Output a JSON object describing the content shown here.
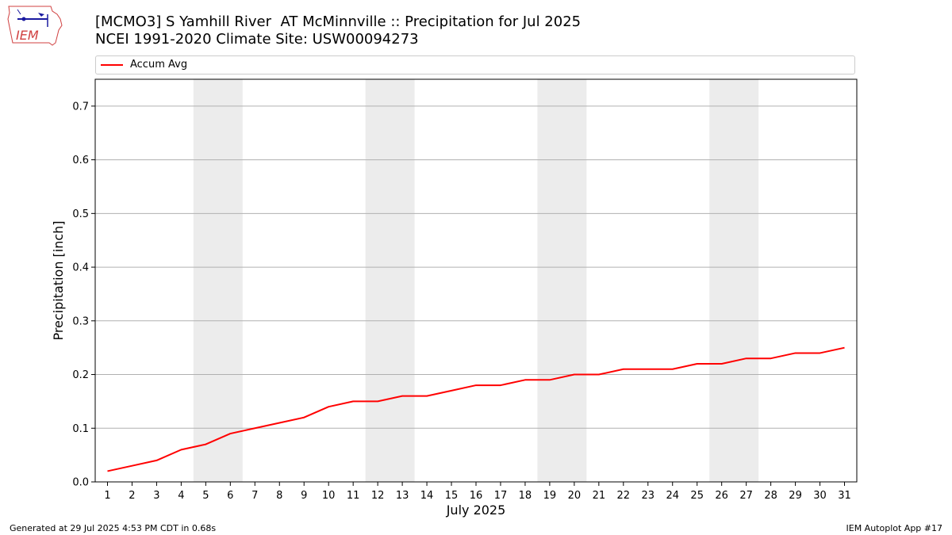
{
  "header": {
    "title_line1": "[MCMO3] S Yamhill River  AT McMinnville :: Precipitation for Jul 2025",
    "title_line2": "NCEI 1991-2020 Climate Site: USW00094273"
  },
  "logo": {
    "text": "IEM",
    "icon": "iem-iowa-logo-icon"
  },
  "footer": {
    "left": "Generated at 29 Jul 2025 4:53 PM CDT in 0.68s",
    "right": "IEM Autoplot App #17"
  },
  "colors": {
    "series": "#ff0000",
    "weekend_band": "#ececec",
    "grid": "#b0b0b0"
  },
  "chart_data": {
    "type": "line",
    "title": "[MCMO3] S Yamhill River  AT McMinnville :: Precipitation for Jul 2025",
    "xlabel": "July 2025",
    "ylabel": "Precipitation [inch]",
    "xlim": [
      0.5,
      31.5
    ],
    "ylim": [
      0,
      0.75
    ],
    "yticks": [
      0.0,
      0.1,
      0.2,
      0.3,
      0.4,
      0.5,
      0.6,
      0.7
    ],
    "ytick_labels": [
      "0.0",
      "0.1",
      "0.2",
      "0.3",
      "0.4",
      "0.5",
      "0.6",
      "0.7"
    ],
    "xticks": [
      1,
      2,
      3,
      4,
      5,
      6,
      7,
      8,
      9,
      10,
      11,
      12,
      13,
      14,
      15,
      16,
      17,
      18,
      19,
      20,
      21,
      22,
      23,
      24,
      25,
      26,
      27,
      28,
      29,
      30,
      31
    ],
    "grid": "y-major",
    "legend_placement": "top",
    "weekend_bands": [
      [
        4.5,
        6.5
      ],
      [
        11.5,
        13.5
      ],
      [
        18.5,
        20.5
      ],
      [
        25.5,
        27.5
      ]
    ],
    "series": [
      {
        "name": "Accum Avg",
        "color": "#ff0000",
        "x": [
          1,
          2,
          3,
          4,
          5,
          6,
          7,
          8,
          9,
          10,
          11,
          12,
          13,
          14,
          15,
          16,
          17,
          18,
          19,
          20,
          21,
          22,
          23,
          24,
          25,
          26,
          27,
          28,
          29,
          30,
          31
        ],
        "values": [
          0.02,
          0.03,
          0.04,
          0.06,
          0.07,
          0.09,
          0.1,
          0.11,
          0.12,
          0.14,
          0.15,
          0.15,
          0.16,
          0.16,
          0.17,
          0.18,
          0.18,
          0.19,
          0.19,
          0.2,
          0.2,
          0.21,
          0.21,
          0.21,
          0.22,
          0.22,
          0.23,
          0.23,
          0.24,
          0.24,
          0.25
        ]
      }
    ]
  }
}
